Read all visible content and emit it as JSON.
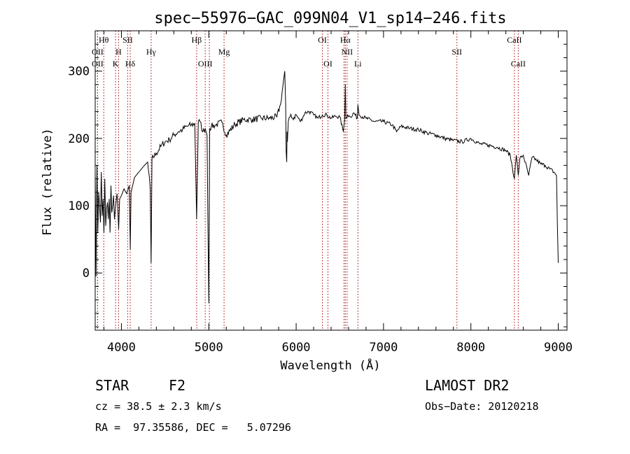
{
  "chart_data": {
    "type": "line",
    "title": "spec−55976−GAC_099N04_V1_sp14−246.fits",
    "xlabel": "Wavelength (Å)",
    "ylabel": "Flux (relative)",
    "xlim": [
      3700,
      9100
    ],
    "ylim": [
      -85,
      360
    ],
    "xticks": [
      4000,
      5000,
      6000,
      7000,
      8000,
      9000
    ],
    "yticks": [
      0,
      100,
      200,
      300
    ],
    "grid": false,
    "series": [
      {
        "x": [
          3700,
          3710,
          3720,
          3730,
          3740,
          3750,
          3760,
          3770,
          3780,
          3790,
          3800,
          3810,
          3820,
          3830,
          3840,
          3850,
          3860,
          3870,
          3880,
          3890,
          3900,
          3910,
          3920,
          3933,
          3950,
          3960,
          3968,
          3980,
          4000,
          4030,
          4060,
          4090,
          4101,
          4110,
          4150,
          4200,
          4250,
          4300,
          4330,
          4340,
          4350,
          4400,
          4450,
          4500,
          4550,
          4600,
          4650,
          4700,
          4750,
          4800,
          4840,
          4861,
          4880,
          4900,
          4930,
          4960,
          4980,
          5000,
          5010,
          5030,
          5080,
          5150,
          5200,
          5300,
          5400,
          5500,
          5600,
          5700,
          5780,
          5820,
          5850,
          5870,
          5880,
          5886,
          5892,
          5896,
          5900,
          5910,
          5930,
          5960,
          6000,
          6050,
          6100,
          6150,
          6200,
          6250,
          6300,
          6350,
          6400,
          6450,
          6500,
          6540,
          6555,
          6563,
          6570,
          6590,
          6620,
          6660,
          6700,
          6707,
          6720,
          6800,
          6900,
          7000,
          7100,
          7150,
          7200,
          7300,
          7400,
          7500,
          7600,
          7700,
          7800,
          7900,
          8000,
          8100,
          8200,
          8300,
          8400,
          8450,
          8498,
          8520,
          8542,
          8560,
          8600,
          8662,
          8700,
          8750,
          8800,
          8850,
          8900,
          8950,
          8980,
          8990,
          9000
        ],
        "y": [
          150,
          -5,
          160,
          60,
          120,
          100,
          75,
          150,
          85,
          110,
          60,
          140,
          70,
          95,
          105,
          80,
          110,
          60,
          130,
          90,
          100,
          115,
          80,
          100,
          118,
          90,
          65,
          110,
          115,
          125,
          118,
          130,
          35,
          120,
          142,
          150,
          158,
          165,
          125,
          15,
          170,
          178,
          188,
          195,
          198,
          205,
          210,
          213,
          218,
          220,
          222,
          80,
          225,
          225,
          210,
          215,
          205,
          -45,
          215,
          218,
          220,
          224,
          205,
          221,
          228,
          228,
          230,
          230,
          232,
          250,
          280,
          300,
          250,
          180,
          165,
          210,
          195,
          225,
          232,
          230,
          235,
          225,
          238,
          240,
          235,
          230,
          235,
          235,
          230,
          233,
          232,
          210,
          228,
          280,
          230,
          235,
          232,
          238,
          230,
          250,
          235,
          230,
          225,
          225,
          220,
          210,
          218,
          215,
          213,
          208,
          205,
          200,
          197,
          195,
          200,
          192,
          190,
          187,
          182,
          175,
          140,
          175,
          145,
          170,
          175,
          145,
          172,
          168,
          162,
          160,
          155,
          150,
          145,
          70,
          15
        ]
      }
    ],
    "line_markers": [
      {
        "wavelength": 3727,
        "label": "OII",
        "row": 2
      },
      {
        "wavelength": 3727,
        "label": "OII",
        "row": 3
      },
      {
        "wavelength": 3798,
        "label": "Hθ",
        "row": 1
      },
      {
        "wavelength": 3933,
        "label": "K",
        "row": 3
      },
      {
        "wavelength": 3968,
        "label": "H",
        "row": 2
      },
      {
        "wavelength": 4072,
        "label": "SII",
        "row": 1
      },
      {
        "wavelength": 4101,
        "label": "Hδ",
        "row": 3
      },
      {
        "wavelength": 4340,
        "label": "Hγ",
        "row": 2
      },
      {
        "wavelength": 4861,
        "label": "Hβ",
        "row": 1
      },
      {
        "wavelength": 4959,
        "label": "OIII",
        "row": 3
      },
      {
        "wavelength": 5007,
        "label": "",
        "row": 0
      },
      {
        "wavelength": 5175,
        "label": "Mg",
        "row": 2
      },
      {
        "wavelength": 6300,
        "label": "OI",
        "row": 1
      },
      {
        "wavelength": 6364,
        "label": "OI",
        "row": 3
      },
      {
        "wavelength": 6548,
        "label": "",
        "row": 0
      },
      {
        "wavelength": 6563,
        "label": "Hα",
        "row": 1
      },
      {
        "wavelength": 6583,
        "label": "NII",
        "row": 2
      },
      {
        "wavelength": 6707,
        "label": "Li",
        "row": 3
      },
      {
        "wavelength": 7840,
        "label": "SII",
        "row": 2
      },
      {
        "wavelength": 8498,
        "label": "CaII",
        "row": 1
      },
      {
        "wavelength": 8542,
        "label": "CaII",
        "row": 3
      }
    ],
    "line_color": "#000000",
    "marker_color": "#aa0000"
  },
  "info": {
    "class": "STAR",
    "subclass": "F2",
    "survey": "LAMOST DR2",
    "velocity": "cz = 38.5 ± 2.3 km/s",
    "obs_date": "Obs−Date: 20120218",
    "coords": "RA =  97.35586, DEC =   5.07296"
  }
}
